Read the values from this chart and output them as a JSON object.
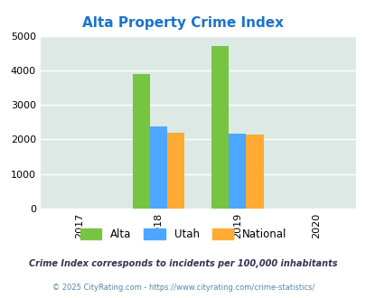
{
  "title": "Alta Property Crime Index",
  "title_color": "#1874CD",
  "title_fontsize": 11,
  "years": [
    2017,
    2018,
    2019,
    2020
  ],
  "bar_data": {
    "2018": {
      "Alta": 3900,
      "Utah": 2380,
      "National": 2200
    },
    "2019": {
      "Alta": 4700,
      "Utah": 2170,
      "National": 2140
    }
  },
  "bar_colors": {
    "Alta": "#76c442",
    "Utah": "#4da6ff",
    "National": "#ffaa33"
  },
  "ylim": [
    0,
    5000
  ],
  "yticks": [
    0,
    1000,
    2000,
    3000,
    4000,
    5000
  ],
  "plot_bg_color": "#dce9e4",
  "grid_color": "#ffffff",
  "legend_labels": [
    "Alta",
    "Utah",
    "National"
  ],
  "footnote1": "Crime Index corresponds to incidents per 100,000 inhabitants",
  "footnote2": "© 2025 CityRating.com - https://www.cityrating.com/crime-statistics/",
  "footnote1_color": "#333355",
  "footnote2_color": "#5588aa",
  "bar_width": 0.22
}
